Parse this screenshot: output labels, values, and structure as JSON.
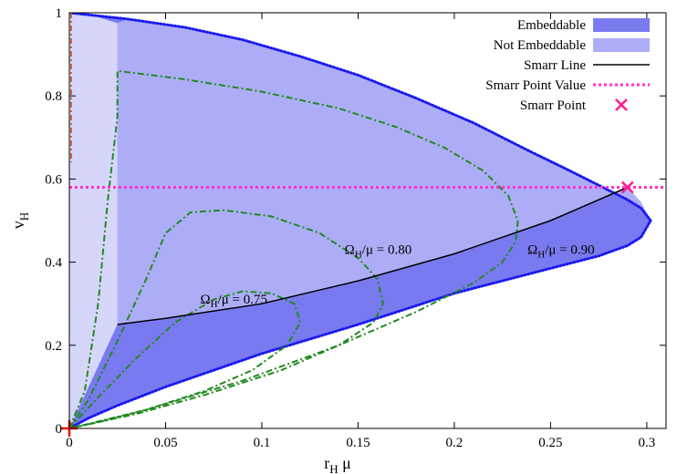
{
  "chart_data": {
    "type": "area",
    "xlabel_main": "r",
    "xlabel_sub": "H",
    "xlabel_tail": " μ",
    "ylabel_main": "v",
    "ylabel_sub": "H",
    "xlim": [
      0,
      0.31
    ],
    "ylim": [
      0,
      1.0
    ],
    "xticks": [
      0,
      0.05,
      0.1,
      0.15,
      0.2,
      0.25,
      0.3
    ],
    "xtick_labels": [
      "0",
      "0.05",
      "0.1",
      "0.15",
      "0.2",
      "0.25",
      "0.3"
    ],
    "yticks": [
      0,
      0.2,
      0.4,
      0.6,
      0.8,
      1.0
    ],
    "ytick_labels": [
      "0",
      "0.2",
      "0.4",
      "0.6",
      "0.8",
      "1"
    ],
    "grid": false,
    "legend_position": "top-right",
    "legend": [
      {
        "label": "Embeddable",
        "kind": "fill",
        "color": "#7a7af0"
      },
      {
        "label": "Not Embeddable",
        "kind": "fill",
        "color": "#adadf7"
      },
      {
        "label": "Smarr Line",
        "kind": "line",
        "color": "#000000"
      },
      {
        "label": "Smarr Point Value",
        "kind": "dotted",
        "color": "#ff33cc"
      },
      {
        "label": "Smarr Point",
        "kind": "marker",
        "color": "#ff1a8c"
      }
    ],
    "colors": {
      "embeddable": "#7a7af0",
      "not_embeddable": "#adadf7",
      "left_strip": "#d6d6fb",
      "boundary": "#1a1aee",
      "smarr_line": "#000000",
      "smarr_value": "#ff33cc",
      "contours": "#1f8a1f",
      "left_axis_line": "#cc6633",
      "origin_marker": "#ee0000"
    },
    "boundary_upper": [
      [
        0,
        1.0
      ],
      [
        0.03,
        0.985
      ],
      [
        0.06,
        0.965
      ],
      [
        0.09,
        0.935
      ],
      [
        0.12,
        0.895
      ],
      [
        0.15,
        0.85
      ],
      [
        0.18,
        0.795
      ],
      [
        0.21,
        0.735
      ],
      [
        0.24,
        0.665
      ],
      [
        0.26,
        0.62
      ],
      [
        0.275,
        0.585
      ],
      [
        0.29,
        0.55
      ],
      [
        0.297,
        0.53
      ],
      [
        0.302,
        0.5
      ]
    ],
    "boundary_lower": [
      [
        0.302,
        0.5
      ],
      [
        0.297,
        0.46
      ],
      [
        0.29,
        0.44
      ],
      [
        0.275,
        0.415
      ],
      [
        0.25,
        0.385
      ],
      [
        0.2,
        0.325
      ],
      [
        0.15,
        0.25
      ],
      [
        0.1,
        0.18
      ],
      [
        0.05,
        0.1
      ],
      [
        0.025,
        0.055
      ],
      [
        0.01,
        0.025
      ],
      [
        0,
        0
      ]
    ],
    "strip_boundary": [
      [
        0.025,
        0.97
      ],
      [
        0.025,
        0.25
      ],
      [
        0,
        0
      ]
    ],
    "smarr_line": [
      [
        0.025,
        0.25
      ],
      [
        0.05,
        0.265
      ],
      [
        0.1,
        0.3
      ],
      [
        0.15,
        0.355
      ],
      [
        0.2,
        0.42
      ],
      [
        0.25,
        0.5
      ],
      [
        0.29,
        0.58
      ]
    ],
    "smarr_point": [
      0.29,
      0.58
    ],
    "smarr_value": 0.58,
    "contours": [
      {
        "label_main": "Ω",
        "label_sub": "H",
        "label_tail": "/μ = 0.75",
        "label_pos": [
          0.068,
          0.3
        ],
        "points": [
          [
            0,
            0
          ],
          [
            0.015,
            0.075
          ],
          [
            0.035,
            0.17
          ],
          [
            0.055,
            0.255
          ],
          [
            0.075,
            0.31
          ],
          [
            0.09,
            0.33
          ],
          [
            0.105,
            0.325
          ],
          [
            0.117,
            0.3
          ],
          [
            0.12,
            0.255
          ],
          [
            0.113,
            0.2
          ],
          [
            0.095,
            0.14
          ],
          [
            0.07,
            0.09
          ],
          [
            0.04,
            0.045
          ],
          [
            0.015,
            0.015
          ],
          [
            0,
            0
          ]
        ]
      },
      {
        "label_main": "Ω",
        "label_sub": "H",
        "label_tail": "/μ = 0.80",
        "label_pos": [
          0.143,
          0.42
        ],
        "points": [
          [
            0,
            0
          ],
          [
            0.01,
            0.07
          ],
          [
            0.025,
            0.21
          ],
          [
            0.04,
            0.36
          ],
          [
            0.05,
            0.47
          ],
          [
            0.063,
            0.52
          ],
          [
            0.08,
            0.525
          ],
          [
            0.105,
            0.51
          ],
          [
            0.13,
            0.47
          ],
          [
            0.15,
            0.41
          ],
          [
            0.16,
            0.36
          ],
          [
            0.163,
            0.3
          ],
          [
            0.158,
            0.255
          ],
          [
            0.14,
            0.2
          ],
          [
            0.11,
            0.14
          ],
          [
            0.07,
            0.08
          ],
          [
            0.035,
            0.035
          ],
          [
            0,
            0
          ]
        ]
      },
      {
        "label_main": "Ω",
        "label_sub": "H",
        "label_tail": "/μ = 0.90",
        "label_pos": [
          0.238,
          0.42
        ],
        "points": [
          [
            0,
            0
          ],
          [
            0.008,
            0.09
          ],
          [
            0.015,
            0.3
          ],
          [
            0.02,
            0.55
          ],
          [
            0.025,
            0.75
          ],
          [
            0.025,
            0.86
          ],
          [
            0.06,
            0.84
          ],
          [
            0.1,
            0.81
          ],
          [
            0.14,
            0.77
          ],
          [
            0.17,
            0.725
          ],
          [
            0.195,
            0.675
          ],
          [
            0.215,
            0.62
          ],
          [
            0.228,
            0.56
          ],
          [
            0.233,
            0.5
          ],
          [
            0.232,
            0.45
          ],
          [
            0.225,
            0.4
          ],
          [
            0.21,
            0.35
          ],
          [
            0.18,
            0.28
          ],
          [
            0.14,
            0.2
          ],
          [
            0.09,
            0.115
          ],
          [
            0.04,
            0.045
          ],
          [
            0,
            0
          ]
        ]
      }
    ]
  }
}
